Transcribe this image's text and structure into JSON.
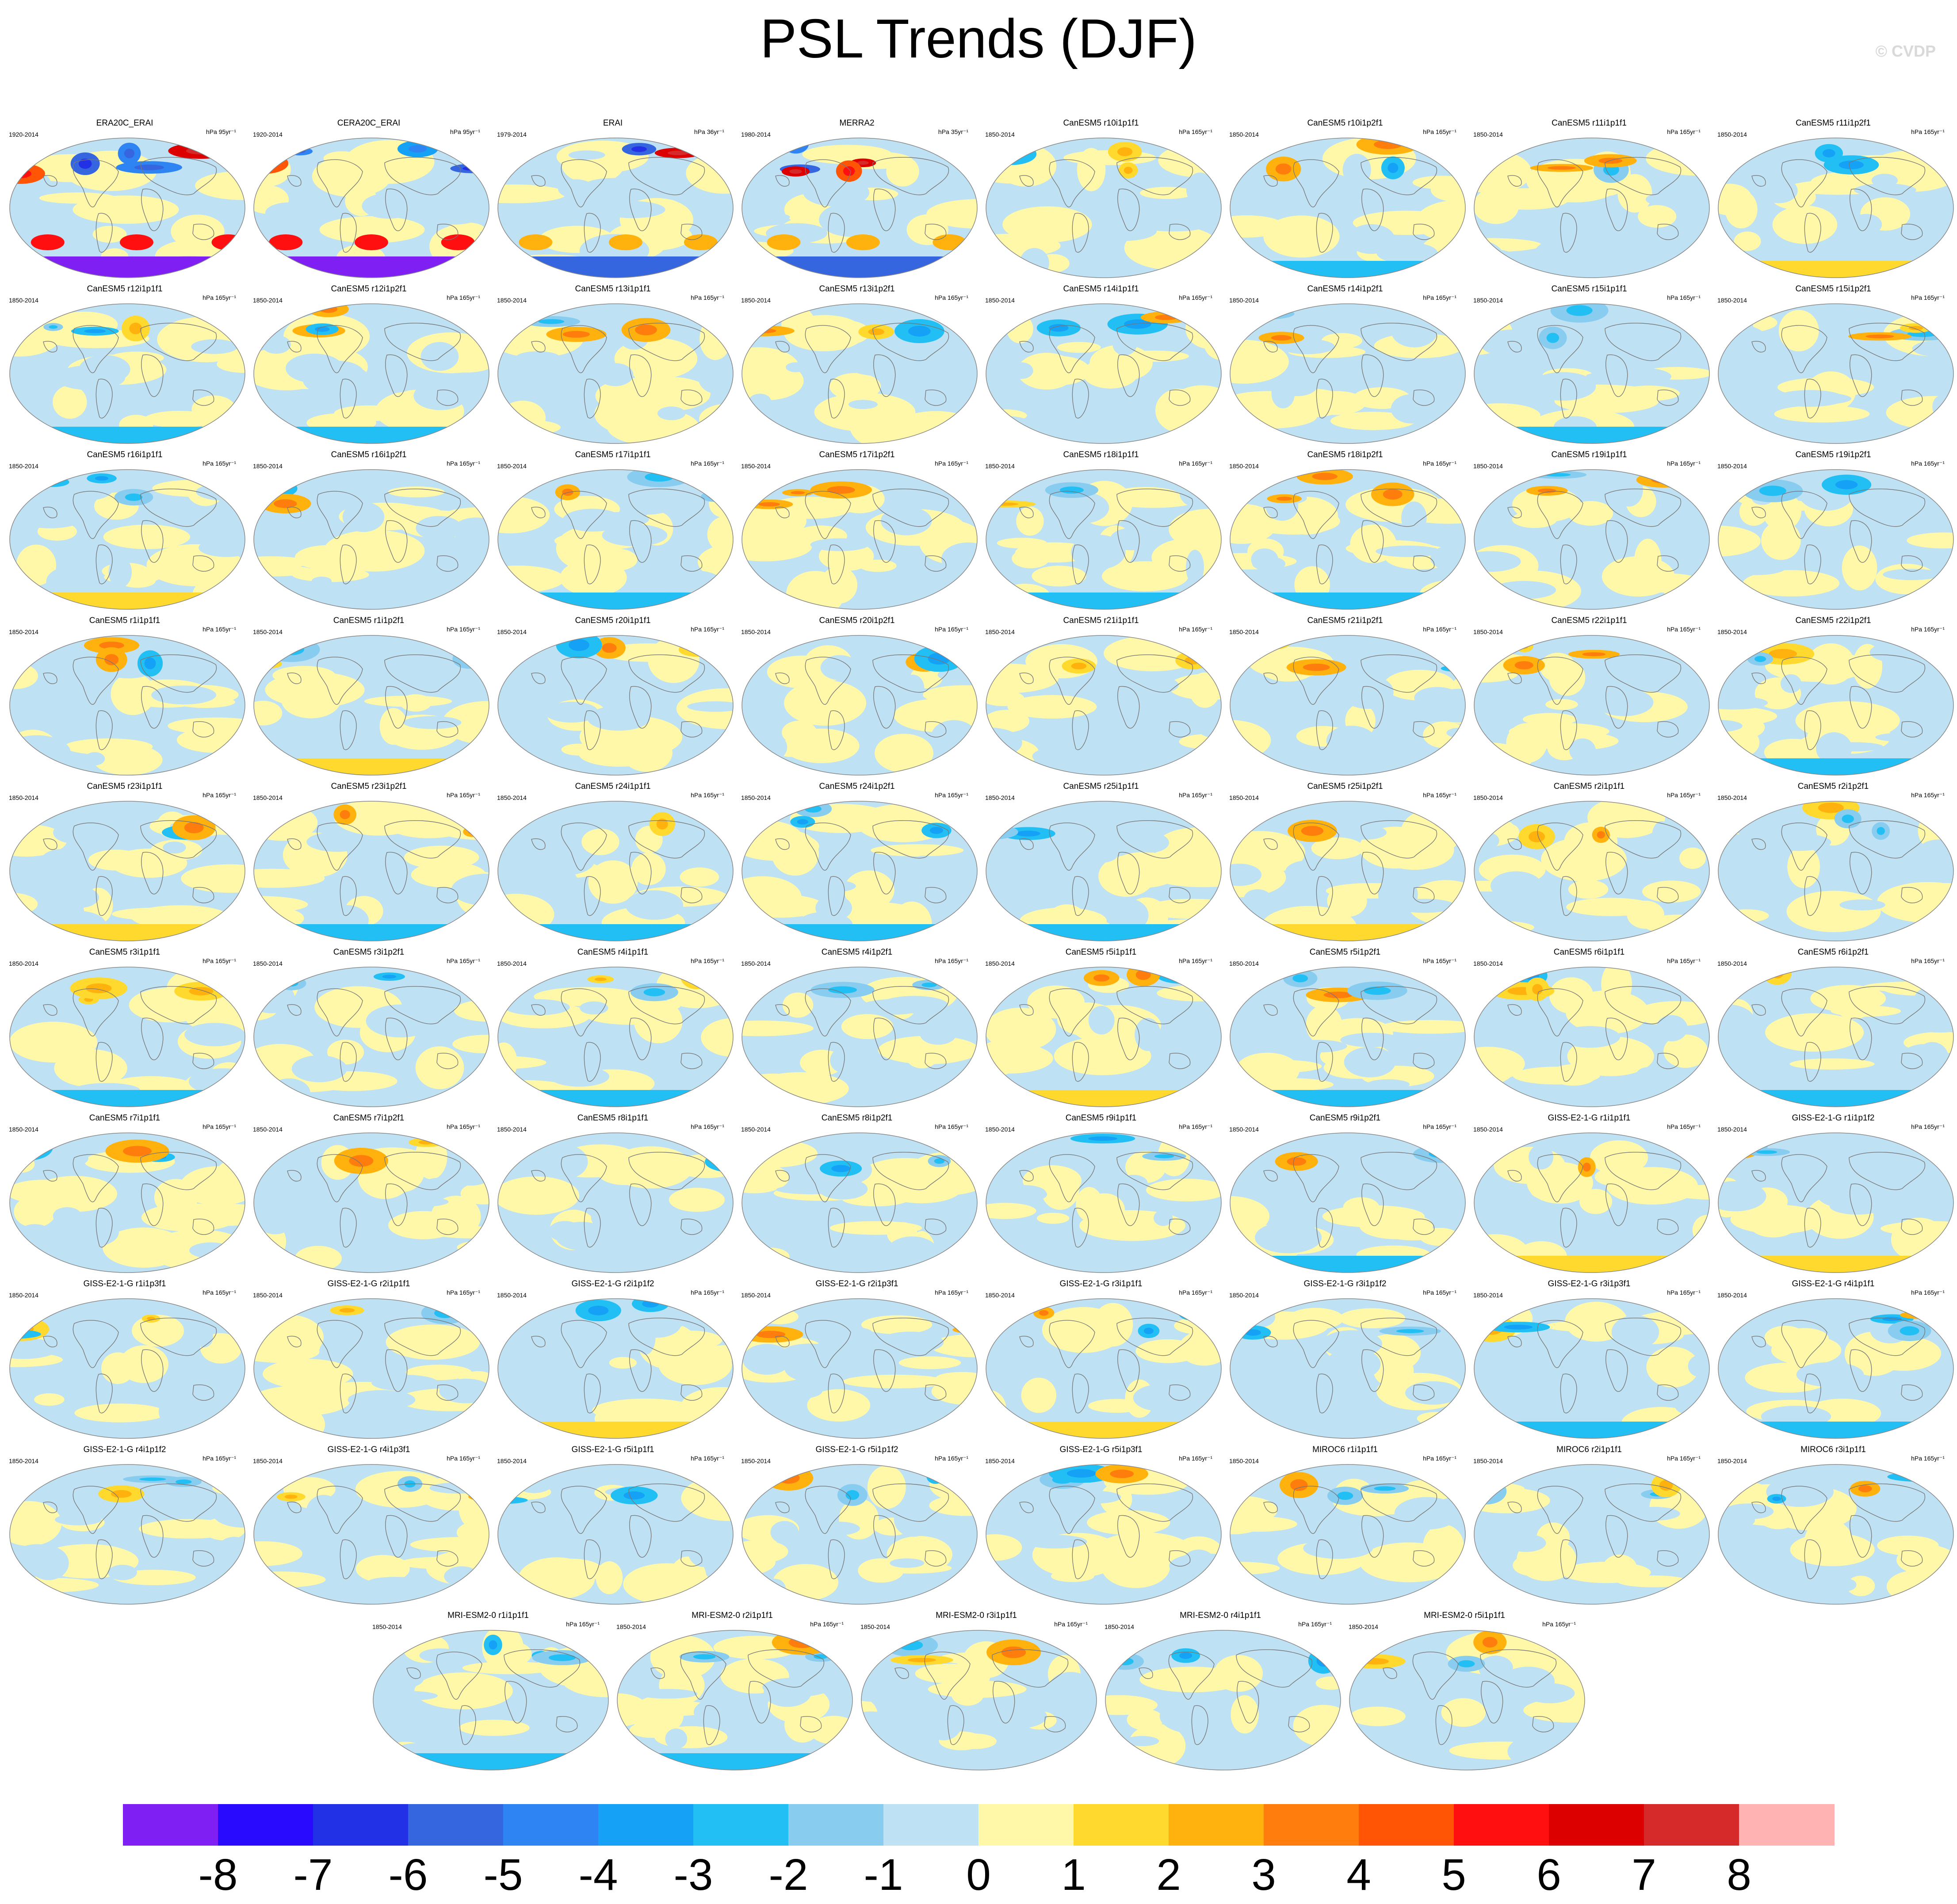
{
  "title": "PSL Trends (DJF)",
  "copyright": "© CVDP",
  "panels": [
    {
      "name": "ERA20C_ERAI",
      "years": "1920-2014",
      "units": "hPa 95yr⁻¹",
      "pattern": "strong"
    },
    {
      "name": "CERA20C_ERAI",
      "years": "1920-2014",
      "units": "hPa 95yr⁻¹",
      "pattern": "strong"
    },
    {
      "name": "ERAI",
      "years": "1979-2014",
      "units": "hPa 36yr⁻¹",
      "pattern": "strong"
    },
    {
      "name": "MERRA2",
      "years": "1980-2014",
      "units": "hPa 35yr⁻¹",
      "pattern": "strong"
    },
    {
      "name": "CanESM5 r10i1p1f1",
      "years": "1850-2014",
      "units": "hPa 165yr⁻¹",
      "pattern": "model"
    },
    {
      "name": "CanESM5 r10i1p2f1",
      "years": "1850-2014",
      "units": "hPa 165yr⁻¹",
      "pattern": "model"
    },
    {
      "name": "CanESM5 r11i1p1f1",
      "years": "1850-2014",
      "units": "hPa 165yr⁻¹",
      "pattern": "model"
    },
    {
      "name": "CanESM5 r11i1p2f1",
      "years": "1850-2014",
      "units": "hPa 165yr⁻¹",
      "pattern": "model"
    },
    {
      "name": "CanESM5 r12i1p1f1",
      "years": "1850-2014",
      "units": "hPa 165yr⁻¹",
      "pattern": "model"
    },
    {
      "name": "CanESM5 r12i1p2f1",
      "years": "1850-2014",
      "units": "hPa 165yr⁻¹",
      "pattern": "model"
    },
    {
      "name": "CanESM5 r13i1p1f1",
      "years": "1850-2014",
      "units": "hPa 165yr⁻¹",
      "pattern": "model"
    },
    {
      "name": "CanESM5 r13i1p2f1",
      "years": "1850-2014",
      "units": "hPa 165yr⁻¹",
      "pattern": "model"
    },
    {
      "name": "CanESM5 r14i1p1f1",
      "years": "1850-2014",
      "units": "hPa 165yr⁻¹",
      "pattern": "model"
    },
    {
      "name": "CanESM5 r14i1p2f1",
      "years": "1850-2014",
      "units": "hPa 165yr⁻¹",
      "pattern": "model"
    },
    {
      "name": "CanESM5 r15i1p1f1",
      "years": "1850-2014",
      "units": "hPa 165yr⁻¹",
      "pattern": "model"
    },
    {
      "name": "CanESM5 r15i1p2f1",
      "years": "1850-2014",
      "units": "hPa 165yr⁻¹",
      "pattern": "model"
    },
    {
      "name": "CanESM5 r16i1p1f1",
      "years": "1850-2014",
      "units": "hPa 165yr⁻¹",
      "pattern": "model"
    },
    {
      "name": "CanESM5 r16i1p2f1",
      "years": "1850-2014",
      "units": "hPa 165yr⁻¹",
      "pattern": "model"
    },
    {
      "name": "CanESM5 r17i1p1f1",
      "years": "1850-2014",
      "units": "hPa 165yr⁻¹",
      "pattern": "model"
    },
    {
      "name": "CanESM5 r17i1p2f1",
      "years": "1850-2014",
      "units": "hPa 165yr⁻¹",
      "pattern": "model"
    },
    {
      "name": "CanESM5 r18i1p1f1",
      "years": "1850-2014",
      "units": "hPa 165yr⁻¹",
      "pattern": "model"
    },
    {
      "name": "CanESM5 r18i1p2f1",
      "years": "1850-2014",
      "units": "hPa 165yr⁻¹",
      "pattern": "model"
    },
    {
      "name": "CanESM5 r19i1p1f1",
      "years": "1850-2014",
      "units": "hPa 165yr⁻¹",
      "pattern": "model"
    },
    {
      "name": "CanESM5 r19i1p2f1",
      "years": "1850-2014",
      "units": "hPa 165yr⁻¹",
      "pattern": "model"
    },
    {
      "name": "CanESM5 r1i1p1f1",
      "years": "1850-2014",
      "units": "hPa 165yr⁻¹",
      "pattern": "model"
    },
    {
      "name": "CanESM5 r1i1p2f1",
      "years": "1850-2014",
      "units": "hPa 165yr⁻¹",
      "pattern": "model"
    },
    {
      "name": "CanESM5 r20i1p1f1",
      "years": "1850-2014",
      "units": "hPa 165yr⁻¹",
      "pattern": "model"
    },
    {
      "name": "CanESM5 r20i1p2f1",
      "years": "1850-2014",
      "units": "hPa 165yr⁻¹",
      "pattern": "model"
    },
    {
      "name": "CanESM5 r21i1p1f1",
      "years": "1850-2014",
      "units": "hPa 165yr⁻¹",
      "pattern": "model"
    },
    {
      "name": "CanESM5 r21i1p2f1",
      "years": "1850-2014",
      "units": "hPa 165yr⁻¹",
      "pattern": "model"
    },
    {
      "name": "CanESM5 r22i1p1f1",
      "years": "1850-2014",
      "units": "hPa 165yr⁻¹",
      "pattern": "model"
    },
    {
      "name": "CanESM5 r22i1p2f1",
      "years": "1850-2014",
      "units": "hPa 165yr⁻¹",
      "pattern": "model"
    },
    {
      "name": "CanESM5 r23i1p1f1",
      "years": "1850-2014",
      "units": "hPa 165yr⁻¹",
      "pattern": "model"
    },
    {
      "name": "CanESM5 r23i1p2f1",
      "years": "1850-2014",
      "units": "hPa 165yr⁻¹",
      "pattern": "model"
    },
    {
      "name": "CanESM5 r24i1p1f1",
      "years": "1850-2014",
      "units": "hPa 165yr⁻¹",
      "pattern": "model"
    },
    {
      "name": "CanESM5 r24i1p2f1",
      "years": "1850-2014",
      "units": "hPa 165yr⁻¹",
      "pattern": "model"
    },
    {
      "name": "CanESM5 r25i1p1f1",
      "years": "1850-2014",
      "units": "hPa 165yr⁻¹",
      "pattern": "model"
    },
    {
      "name": "CanESM5 r25i1p2f1",
      "years": "1850-2014",
      "units": "hPa 165yr⁻¹",
      "pattern": "model"
    },
    {
      "name": "CanESM5 r2i1p1f1",
      "years": "1850-2014",
      "units": "hPa 165yr⁻¹",
      "pattern": "model"
    },
    {
      "name": "CanESM5 r2i1p2f1",
      "years": "1850-2014",
      "units": "hPa 165yr⁻¹",
      "pattern": "model"
    },
    {
      "name": "CanESM5 r3i1p1f1",
      "years": "1850-2014",
      "units": "hPa 165yr⁻¹",
      "pattern": "model"
    },
    {
      "name": "CanESM5 r3i1p2f1",
      "years": "1850-2014",
      "units": "hPa 165yr⁻¹",
      "pattern": "model"
    },
    {
      "name": "CanESM5 r4i1p1f1",
      "years": "1850-2014",
      "units": "hPa 165yr⁻¹",
      "pattern": "model"
    },
    {
      "name": "CanESM5 r4i1p2f1",
      "years": "1850-2014",
      "units": "hPa 165yr⁻¹",
      "pattern": "model"
    },
    {
      "name": "CanESM5 r5i1p1f1",
      "years": "1850-2014",
      "units": "hPa 165yr⁻¹",
      "pattern": "model"
    },
    {
      "name": "CanESM5 r5i1p2f1",
      "years": "1850-2014",
      "units": "hPa 165yr⁻¹",
      "pattern": "model"
    },
    {
      "name": "CanESM5 r6i1p1f1",
      "years": "1850-2014",
      "units": "hPa 165yr⁻¹",
      "pattern": "model"
    },
    {
      "name": "CanESM5 r6i1p2f1",
      "years": "1850-2014",
      "units": "hPa 165yr⁻¹",
      "pattern": "model"
    },
    {
      "name": "CanESM5 r7i1p1f1",
      "years": "1850-2014",
      "units": "hPa 165yr⁻¹",
      "pattern": "model"
    },
    {
      "name": "CanESM5 r7i1p2f1",
      "years": "1850-2014",
      "units": "hPa 165yr⁻¹",
      "pattern": "model"
    },
    {
      "name": "CanESM5 r8i1p1f1",
      "years": "1850-2014",
      "units": "hPa 165yr⁻¹",
      "pattern": "model"
    },
    {
      "name": "CanESM5 r8i1p2f1",
      "years": "1850-2014",
      "units": "hPa 165yr⁻¹",
      "pattern": "model"
    },
    {
      "name": "CanESM5 r9i1p1f1",
      "years": "1850-2014",
      "units": "hPa 165yr⁻¹",
      "pattern": "model"
    },
    {
      "name": "CanESM5 r9i1p2f1",
      "years": "1850-2014",
      "units": "hPa 165yr⁻¹",
      "pattern": "model"
    },
    {
      "name": "GISS-E2-1-G r1i1p1f1",
      "years": "1850-2014",
      "units": "hPa 165yr⁻¹",
      "pattern": "model"
    },
    {
      "name": "GISS-E2-1-G r1i1p1f2",
      "years": "1850-2014",
      "units": "hPa 165yr⁻¹",
      "pattern": "model"
    },
    {
      "name": "GISS-E2-1-G r1i1p3f1",
      "years": "1850-2014",
      "units": "hPa 165yr⁻¹",
      "pattern": "model"
    },
    {
      "name": "GISS-E2-1-G r2i1p1f1",
      "years": "1850-2014",
      "units": "hPa 165yr⁻¹",
      "pattern": "model"
    },
    {
      "name": "GISS-E2-1-G r2i1p1f2",
      "years": "1850-2014",
      "units": "hPa 165yr⁻¹",
      "pattern": "model"
    },
    {
      "name": "GISS-E2-1-G r2i1p3f1",
      "years": "1850-2014",
      "units": "hPa 165yr⁻¹",
      "pattern": "model"
    },
    {
      "name": "GISS-E2-1-G r3i1p1f1",
      "years": "1850-2014",
      "units": "hPa 165yr⁻¹",
      "pattern": "model"
    },
    {
      "name": "GISS-E2-1-G r3i1p1f2",
      "years": "1850-2014",
      "units": "hPa 165yr⁻¹",
      "pattern": "model"
    },
    {
      "name": "GISS-E2-1-G r3i1p3f1",
      "years": "1850-2014",
      "units": "hPa 165yr⁻¹",
      "pattern": "model"
    },
    {
      "name": "GISS-E2-1-G r4i1p1f1",
      "years": "1850-2014",
      "units": "hPa 165yr⁻¹",
      "pattern": "model"
    },
    {
      "name": "GISS-E2-1-G r4i1p1f2",
      "years": "1850-2014",
      "units": "hPa 165yr⁻¹",
      "pattern": "model"
    },
    {
      "name": "GISS-E2-1-G r4i1p3f1",
      "years": "1850-2014",
      "units": "hPa 165yr⁻¹",
      "pattern": "model"
    },
    {
      "name": "GISS-E2-1-G r5i1p1f1",
      "years": "1850-2014",
      "units": "hPa 165yr⁻¹",
      "pattern": "model"
    },
    {
      "name": "GISS-E2-1-G r5i1p1f2",
      "years": "1850-2014",
      "units": "hPa 165yr⁻¹",
      "pattern": "model"
    },
    {
      "name": "GISS-E2-1-G r5i1p3f1",
      "years": "1850-2014",
      "units": "hPa 165yr⁻¹",
      "pattern": "model"
    },
    {
      "name": "MIROC6 r1i1p1f1",
      "years": "1850-2014",
      "units": "hPa 165yr⁻¹",
      "pattern": "model"
    },
    {
      "name": "MIROC6 r2i1p1f1",
      "years": "1850-2014",
      "units": "hPa 165yr⁻¹",
      "pattern": "model"
    },
    {
      "name": "MIROC6 r3i1p1f1",
      "years": "1850-2014",
      "units": "hPa 165yr⁻¹",
      "pattern": "model"
    },
    {
      "name": "MRI-ESM2-0 r1i1p1f1",
      "years": "1850-2014",
      "units": "hPa 165yr⁻¹",
      "pattern": "model"
    },
    {
      "name": "MRI-ESM2-0 r2i1p1f1",
      "years": "1850-2014",
      "units": "hPa 165yr⁻¹",
      "pattern": "model"
    },
    {
      "name": "MRI-ESM2-0 r3i1p1f1",
      "years": "1850-2014",
      "units": "hPa 165yr⁻¹",
      "pattern": "model"
    },
    {
      "name": "MRI-ESM2-0 r4i1p1f1",
      "years": "1850-2014",
      "units": "hPa 165yr⁻¹",
      "pattern": "model"
    },
    {
      "name": "MRI-ESM2-0 r5i1p1f1",
      "years": "1850-2014",
      "units": "hPa 165yr⁻¹",
      "pattern": "model"
    }
  ],
  "colorbar": {
    "labels": [
      "-8",
      "-7",
      "-6",
      "-5",
      "-4",
      "-3",
      "-2",
      "-1",
      "0",
      "1",
      "2",
      "3",
      "4",
      "5",
      "6",
      "7",
      "8"
    ],
    "colors": [
      "#7f1ff3",
      "#2a0aff",
      "#2331e6",
      "#3566e0",
      "#2e84f3",
      "#14a1f6",
      "#22bff5",
      "#88ccef",
      "#bfe1f4",
      "#fff8a8",
      "#ffd92e",
      "#ffb20e",
      "#ff7d0c",
      "#ff5505",
      "#ff0f0f",
      "#dc0000",
      "#d62a2a",
      "#ffb3b3"
    ]
  },
  "chart_data": {
    "type": "heatmap",
    "title": "PSL Trends (DJF)",
    "variable": "PSL",
    "season": "DJF",
    "colorbar_ticks": [
      -8,
      -7,
      -6,
      -5,
      -4,
      -3,
      -2,
      -1,
      0,
      1,
      2,
      3,
      4,
      5,
      6,
      7,
      8
    ],
    "colorbar_range": [
      -8,
      8
    ],
    "panel_count": 77,
    "layout": "small multiples, 8 per row"
  }
}
